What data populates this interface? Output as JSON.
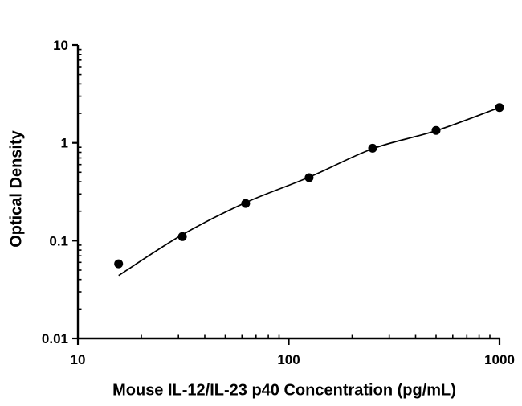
{
  "figure": {
    "background": "#ffffff",
    "ink_color": "#000000"
  },
  "chart_data": {
    "type": "scatter",
    "title": "",
    "xlabel": "Mouse IL-12/IL-23 p40 Concentration (pg/mL)",
    "ylabel": "Optical Density",
    "xscale": "log",
    "yscale": "log",
    "xlim": [
      10,
      1000
    ],
    "ylim": [
      0.01,
      10
    ],
    "grid": false,
    "legend": "none",
    "x_major_ticks": [
      10,
      100,
      1000
    ],
    "x_tick_labels": [
      "10",
      "100",
      "1000"
    ],
    "y_major_ticks": [
      0.01,
      0.1,
      1,
      10
    ],
    "y_tick_labels": [
      "0.01",
      "0.1",
      "1",
      "10"
    ],
    "marker": {
      "shape": "filled-circle",
      "radius_px": 5.5,
      "color": "#000000"
    },
    "series": [
      {
        "name": "fit-curve",
        "type": "line",
        "color": "#000000",
        "x": [
          15.6,
          31.3,
          62.5,
          125,
          250,
          500,
          1000
        ],
        "y": [
          0.044,
          0.115,
          0.245,
          0.445,
          0.87,
          1.33,
          2.3
        ]
      },
      {
        "name": "standard-points",
        "type": "scatter",
        "color": "#000000",
        "x": [
          15.6,
          31.3,
          62.5,
          125,
          250,
          500,
          1000
        ],
        "y": [
          0.058,
          0.11,
          0.24,
          0.44,
          0.88,
          1.34,
          2.3
        ]
      }
    ]
  }
}
